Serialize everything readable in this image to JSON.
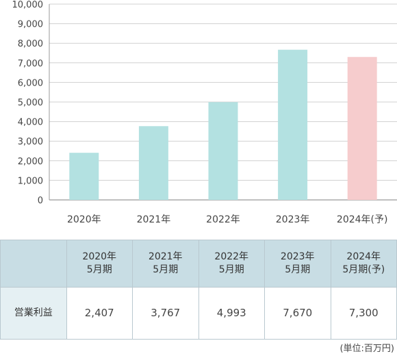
{
  "chart_data": {
    "type": "bar",
    "categories": [
      "2020年",
      "2021年",
      "2022年",
      "2023年",
      "2024年(予)"
    ],
    "values": [
      2407,
      3767,
      4993,
      7670,
      7300
    ],
    "ylim": [
      0,
      10000
    ],
    "yticks": [
      "0",
      "1,000",
      "2,000",
      "3,000",
      "4,000",
      "5,000",
      "6,000",
      "7,000",
      "8,000",
      "9,000",
      "10,000"
    ],
    "colors": [
      "#b3e1e1",
      "#b3e1e1",
      "#b3e1e1",
      "#b3e1e1",
      "#f6cccd"
    ]
  },
  "table": {
    "headers": [
      "",
      "2020年\n5月期",
      "2021年\n5月期",
      "2022年\n5月期",
      "2023年\n5月期",
      "2024年\n5月期(予)"
    ],
    "row_label": "営業利益",
    "row_values": [
      "2,407",
      "3,767",
      "4,993",
      "7,670",
      "7,300"
    ]
  },
  "unit": "(単位:百万円)"
}
